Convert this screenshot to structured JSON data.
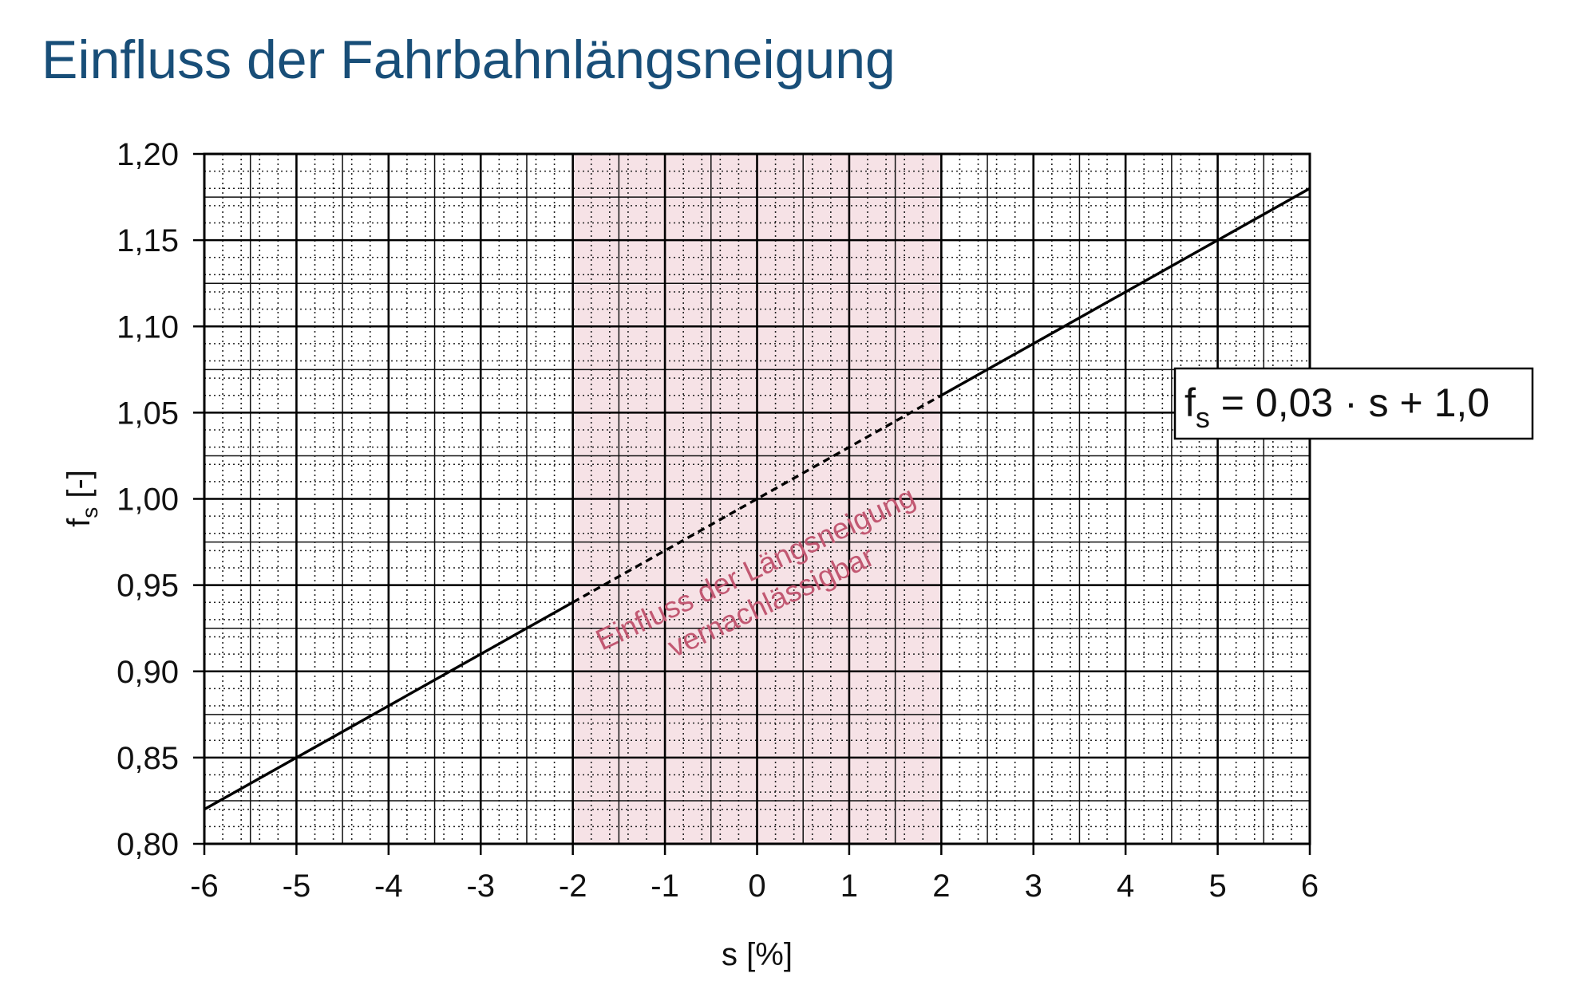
{
  "title": "Einfluss der Fahrbahnlängsneigung",
  "chart_data": {
    "type": "line",
    "xlabel": "s [%]",
    "ylabel": {
      "main": "f",
      "sub": "s",
      "unit": " [-]"
    },
    "xlim": [
      -6,
      6
    ],
    "ylim": [
      0.8,
      1.2
    ],
    "x_ticks": [
      "-6",
      "-5",
      "-4",
      "-3",
      "-2",
      "-1",
      "0",
      "1",
      "2",
      "3",
      "4",
      "5",
      "6"
    ],
    "y_ticks": [
      "0,80",
      "0,85",
      "0,90",
      "0,95",
      "1,00",
      "1,05",
      "1,10",
      "1,15",
      "1,20"
    ],
    "grid": true,
    "series": [
      {
        "x": [
          -6,
          -2,
          2,
          6
        ],
        "y": [
          0.82,
          0.94,
          1.06,
          1.18
        ],
        "segment_styles": [
          "solid",
          "dashed",
          "solid"
        ],
        "color": "#000000"
      }
    ],
    "shaded_region": {
      "x_range": [
        -2,
        2
      ],
      "color": "#f6e2e6",
      "label_line1": "Einfluss der Längsneigung",
      "label_line2": "vernachlässigbar",
      "label_color": "#c25872"
    },
    "formula": {
      "lhs": "f",
      "lhs_sub": "s",
      "rhs": " = 0,03 · s + 1,0"
    }
  }
}
